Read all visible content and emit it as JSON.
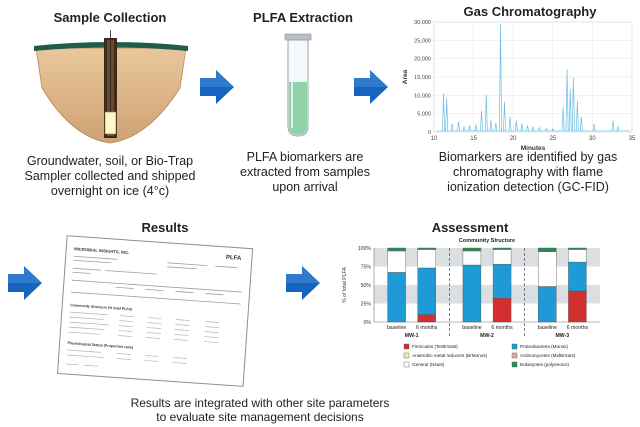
{
  "panels": {
    "sample": {
      "title": "Sample Collection",
      "caption_lines": [
        "Groundwater, soil, or Bio-Trap",
        "Sampler collected and shipped",
        "overnight on ice (4°c)"
      ]
    },
    "extraction": {
      "title": "PLFA Extraction",
      "caption_lines": [
        "PLFA biomarkers are",
        "extracted from samples",
        "upon arrival"
      ]
    },
    "gc": {
      "title": "Gas Chromatography",
      "caption_lines": [
        "Biomarkers are identified by gas",
        "chromatography with flame",
        "ionization detection (GC-FID)"
      ]
    },
    "results": {
      "title": "Results",
      "caption_lines": [
        "Results are integrated with other site parameters",
        "to evaluate site management decisions"
      ]
    },
    "assessment": {
      "title": "Assessment"
    }
  },
  "report_doc": {
    "header_right": "PLFA",
    "company": "MICROBIAL INSIGHTS, INC.",
    "community_heading": "Community Structure (% total PLFA)",
    "physiological_heading": "Physiological Status (Proportion ratio)"
  },
  "chart_data": [
    {
      "type": "line",
      "title": "Gas Chromatography",
      "xlabel": "Minutes",
      "ylabel": "Area",
      "xlim": [
        10,
        35
      ],
      "ylim": [
        0,
        30000
      ],
      "x_ticks": [
        10,
        15,
        20,
        25,
        30,
        35
      ],
      "y_ticks": [
        0,
        5000,
        10000,
        15000,
        20000,
        25000,
        30000
      ],
      "y_tick_labels": [
        "0",
        "5,000",
        "10,000",
        "15,000",
        "20,000",
        "25,000",
        "30,000"
      ],
      "grid": true,
      "peaks": [
        {
          "x": 11.2,
          "y": 10500
        },
        {
          "x": 11.6,
          "y": 9200
        },
        {
          "x": 12.3,
          "y": 2200
        },
        {
          "x": 13.1,
          "y": 2800
        },
        {
          "x": 13.8,
          "y": 1500
        },
        {
          "x": 14.5,
          "y": 1800
        },
        {
          "x": 15.3,
          "y": 2100
        },
        {
          "x": 16.0,
          "y": 5800
        },
        {
          "x": 16.6,
          "y": 10200
        },
        {
          "x": 17.2,
          "y": 3200
        },
        {
          "x": 17.8,
          "y": 2500
        },
        {
          "x": 18.4,
          "y": 29500
        },
        {
          "x": 18.9,
          "y": 8200
        },
        {
          "x": 19.6,
          "y": 4200
        },
        {
          "x": 20.4,
          "y": 3100
        },
        {
          "x": 21.1,
          "y": 2300
        },
        {
          "x": 21.8,
          "y": 1800
        },
        {
          "x": 22.5,
          "y": 1500
        },
        {
          "x": 23.3,
          "y": 1200
        },
        {
          "x": 24.2,
          "y": 1000
        },
        {
          "x": 25.0,
          "y": 900
        },
        {
          "x": 26.3,
          "y": 6800
        },
        {
          "x": 26.8,
          "y": 17200
        },
        {
          "x": 27.2,
          "y": 11800
        },
        {
          "x": 27.6,
          "y": 14800
        },
        {
          "x": 28.1,
          "y": 8500
        },
        {
          "x": 28.6,
          "y": 4200
        },
        {
          "x": 30.2,
          "y": 2200
        },
        {
          "x": 32.6,
          "y": 3200
        },
        {
          "x": 33.2,
          "y": 1500
        }
      ]
    },
    {
      "type": "bar",
      "stacked": true,
      "title": "Community Structure",
      "ylabel": "% of total PLFA",
      "ylim": [
        0,
        100
      ],
      "y_ticks": [
        0,
        25,
        50,
        75,
        100
      ],
      "y_tick_labels": [
        "0%",
        "25%",
        "50%",
        "75%",
        "100%"
      ],
      "categories": [
        "baseline",
        "6 months",
        "baseline",
        "6 months",
        "baseline",
        "6 months"
      ],
      "groups": [
        {
          "name": "MW-1",
          "bar_count": 2
        },
        {
          "name": "MW-2",
          "bar_count": 2
        },
        {
          "name": "MW-3",
          "bar_count": 2
        }
      ],
      "series": [
        {
          "name": "Firmicutes (TerBrSats)",
          "color": "#d32f2f",
          "values": [
            0,
            10,
            0,
            32,
            0,
            42
          ]
        },
        {
          "name": "Proteobacteria (Monos)",
          "color": "#1e9ad6",
          "values": [
            67,
            63,
            77,
            46,
            48,
            39
          ]
        },
        {
          "name": "Anaerobic metal reducers (BrMonos)",
          "color": "#f6e9a8",
          "values": [
            0,
            0,
            0,
            0,
            0,
            0
          ]
        },
        {
          "name": "Actinomycetes (MidBrSats)",
          "color": "#f0a3a3",
          "values": [
            0,
            0,
            0,
            0,
            0,
            0
          ]
        },
        {
          "name": "General (Nsats)",
          "color": "#ffffff",
          "values": [
            29,
            25,
            19,
            20,
            47,
            17
          ]
        },
        {
          "name": "Eukaryotes (polyenoics)",
          "color": "#2e8b57",
          "values": [
            4,
            2,
            4,
            2,
            5,
            2
          ]
        }
      ],
      "legend_placement": "bottom"
    }
  ]
}
